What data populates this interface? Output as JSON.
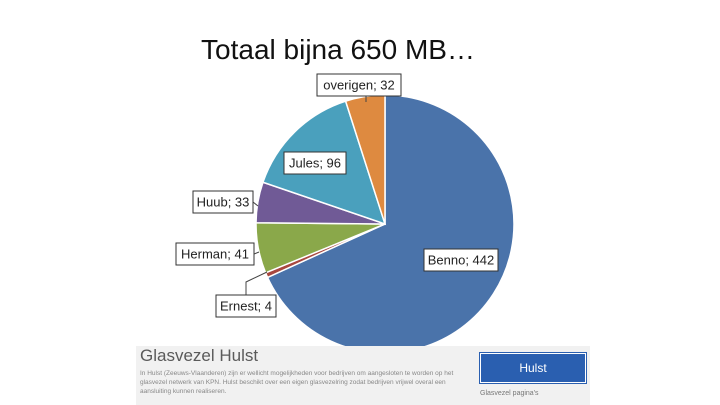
{
  "title": "Totaal bijna 650 MB…",
  "chart_data": {
    "type": "pie",
    "title": "Totaal bijna 650 MB…",
    "start_angle_deg": 0,
    "direction": "clockwise",
    "slices": [
      {
        "label": "Benno",
        "value": 442,
        "display": "Benno; 442",
        "color": "#4a73aa"
      },
      {
        "label": "Ernest",
        "value": 4,
        "display": "Ernest; 4",
        "color": "#a8473f"
      },
      {
        "label": "Herman",
        "value": 41,
        "display": "Herman; 41",
        "color": "#8aa84a"
      },
      {
        "label": "Huub",
        "value": 33,
        "display": "Huub; 33",
        "color": "#705a96"
      },
      {
        "label": "Jules",
        "value": 96,
        "display": "Jules; 96",
        "color": "#4aa0bd"
      },
      {
        "label": "overigen",
        "value": 32,
        "display": "overigen; 32",
        "color": "#de8a40"
      }
    ]
  },
  "banner": {
    "title": "Glasvezel Hulst",
    "text": "In Hulst (Zeeuws-Vlaanderen) zijn er wellicht mogelijkheden voor bedrijven om aangesloten te worden op het glasvezel netwerk van KPN. Hulst beschikt over een eigen glasvezelring zodat bedrijven vrijwel overal een aansluiting kunnen realiseren.",
    "button_label": "Hulst",
    "link_text": "Glasvezel pagina's"
  }
}
